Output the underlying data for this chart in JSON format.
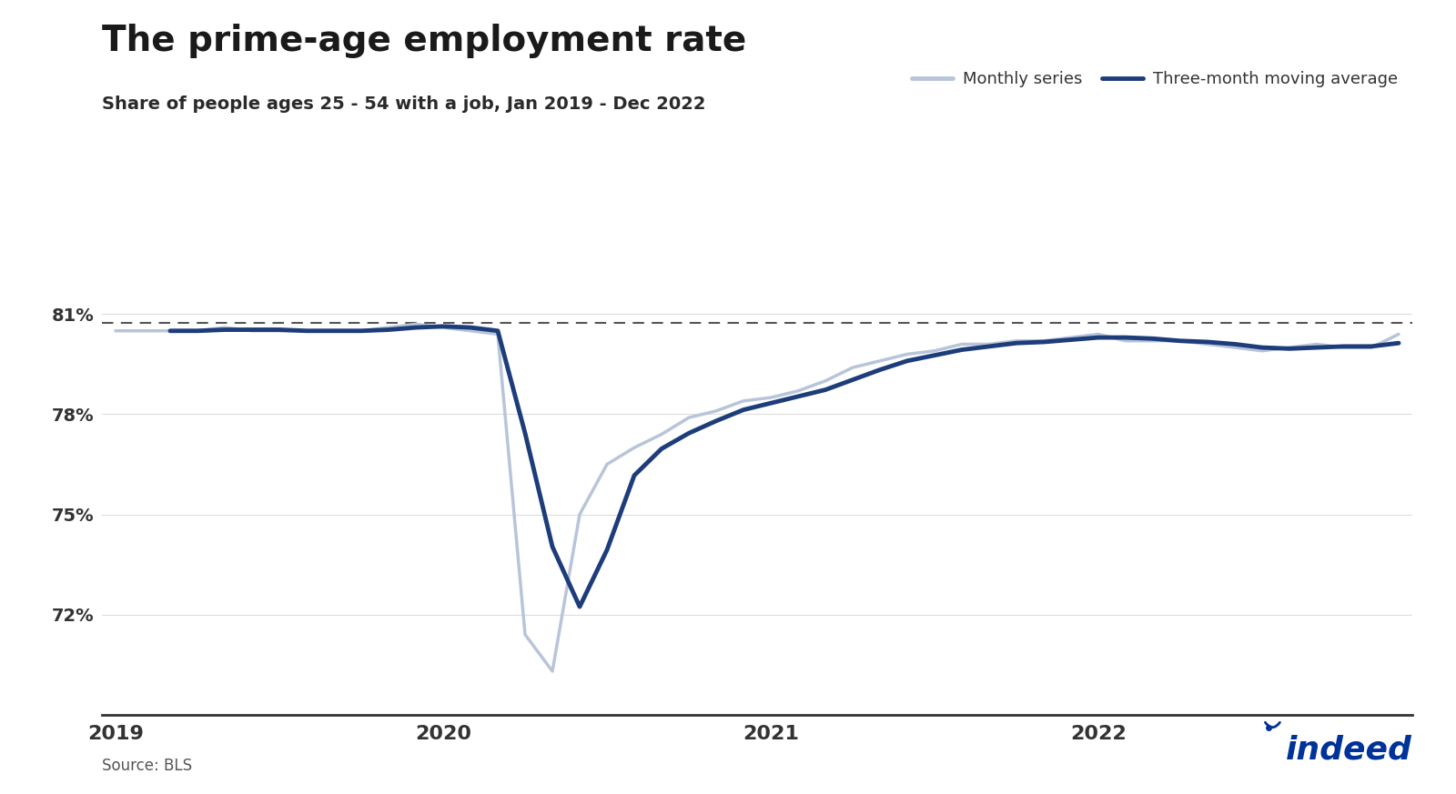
{
  "title": "The prime-age employment rate",
  "subtitle": "Share of people ages 25 - 54 with a job, Jan 2019 - Dec 2022",
  "source": "Source: BLS",
  "legend_monthly": "Monthly series",
  "legend_ma": "Three-month moving average",
  "monthly_color": "#b8c5d9",
  "ma_color": "#1d3d7a",
  "dashed_line_value": 80.75,
  "dashed_line_color": "#555555",
  "background_color": "#ffffff",
  "yticks": [
    72,
    75,
    78,
    81
  ],
  "ytick_labels": [
    "72%",
    "75%",
    "78%",
    "81%"
  ],
  "xlabel_years": [
    "2019",
    "2020",
    "2021",
    "2022"
  ],
  "monthly_data": [
    80.5,
    80.5,
    80.5,
    80.5,
    80.6,
    80.5,
    80.5,
    80.5,
    80.5,
    80.5,
    80.6,
    80.7,
    80.6,
    80.5,
    80.4,
    71.4,
    70.3,
    75.0,
    76.5,
    77.0,
    77.4,
    77.9,
    78.1,
    78.4,
    78.5,
    78.7,
    79.0,
    79.4,
    79.6,
    79.8,
    79.9,
    80.1,
    80.1,
    80.2,
    80.2,
    80.3,
    80.4,
    80.2,
    80.2,
    80.2,
    80.1,
    80.0,
    79.9,
    80.0,
    80.1,
    80.0,
    80.0,
    80.4
  ],
  "title_fontsize": 28,
  "subtitle_fontsize": 14,
  "tick_fontsize": 14,
  "legend_fontsize": 13,
  "source_fontsize": 12,
  "ma_linewidth": 3.5,
  "monthly_linewidth": 2.5
}
